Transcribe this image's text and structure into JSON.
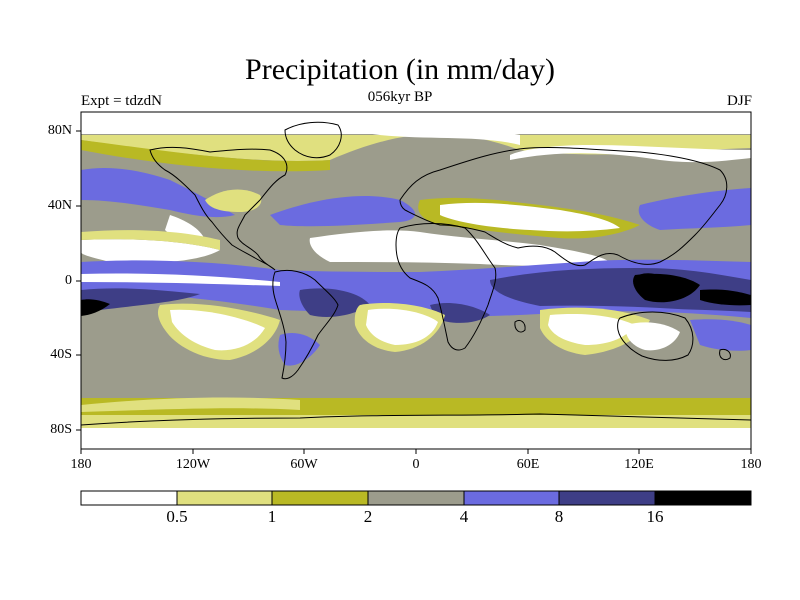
{
  "header": {
    "title": "Precipitation (in mm/day)",
    "left": "Expt = tdzdN",
    "center": "056kyr BP",
    "right": "DJF"
  },
  "map": {
    "projection": "cylindrical equidistant",
    "lat_ticks": [
      "80N",
      "40N",
      "0",
      "40S",
      "80S"
    ],
    "lon_ticks": [
      "180",
      "120W",
      "60W",
      "0",
      "60E",
      "120E",
      "180"
    ]
  },
  "colorbar": {
    "levels": [
      "0.5",
      "1",
      "2",
      "4",
      "8",
      "16"
    ],
    "colors": [
      "#ffffff",
      "#e0e07f",
      "#b9b924",
      "#9c9c8c",
      "#6b6be0",
      "#3e3e86",
      "#000000"
    ]
  }
}
